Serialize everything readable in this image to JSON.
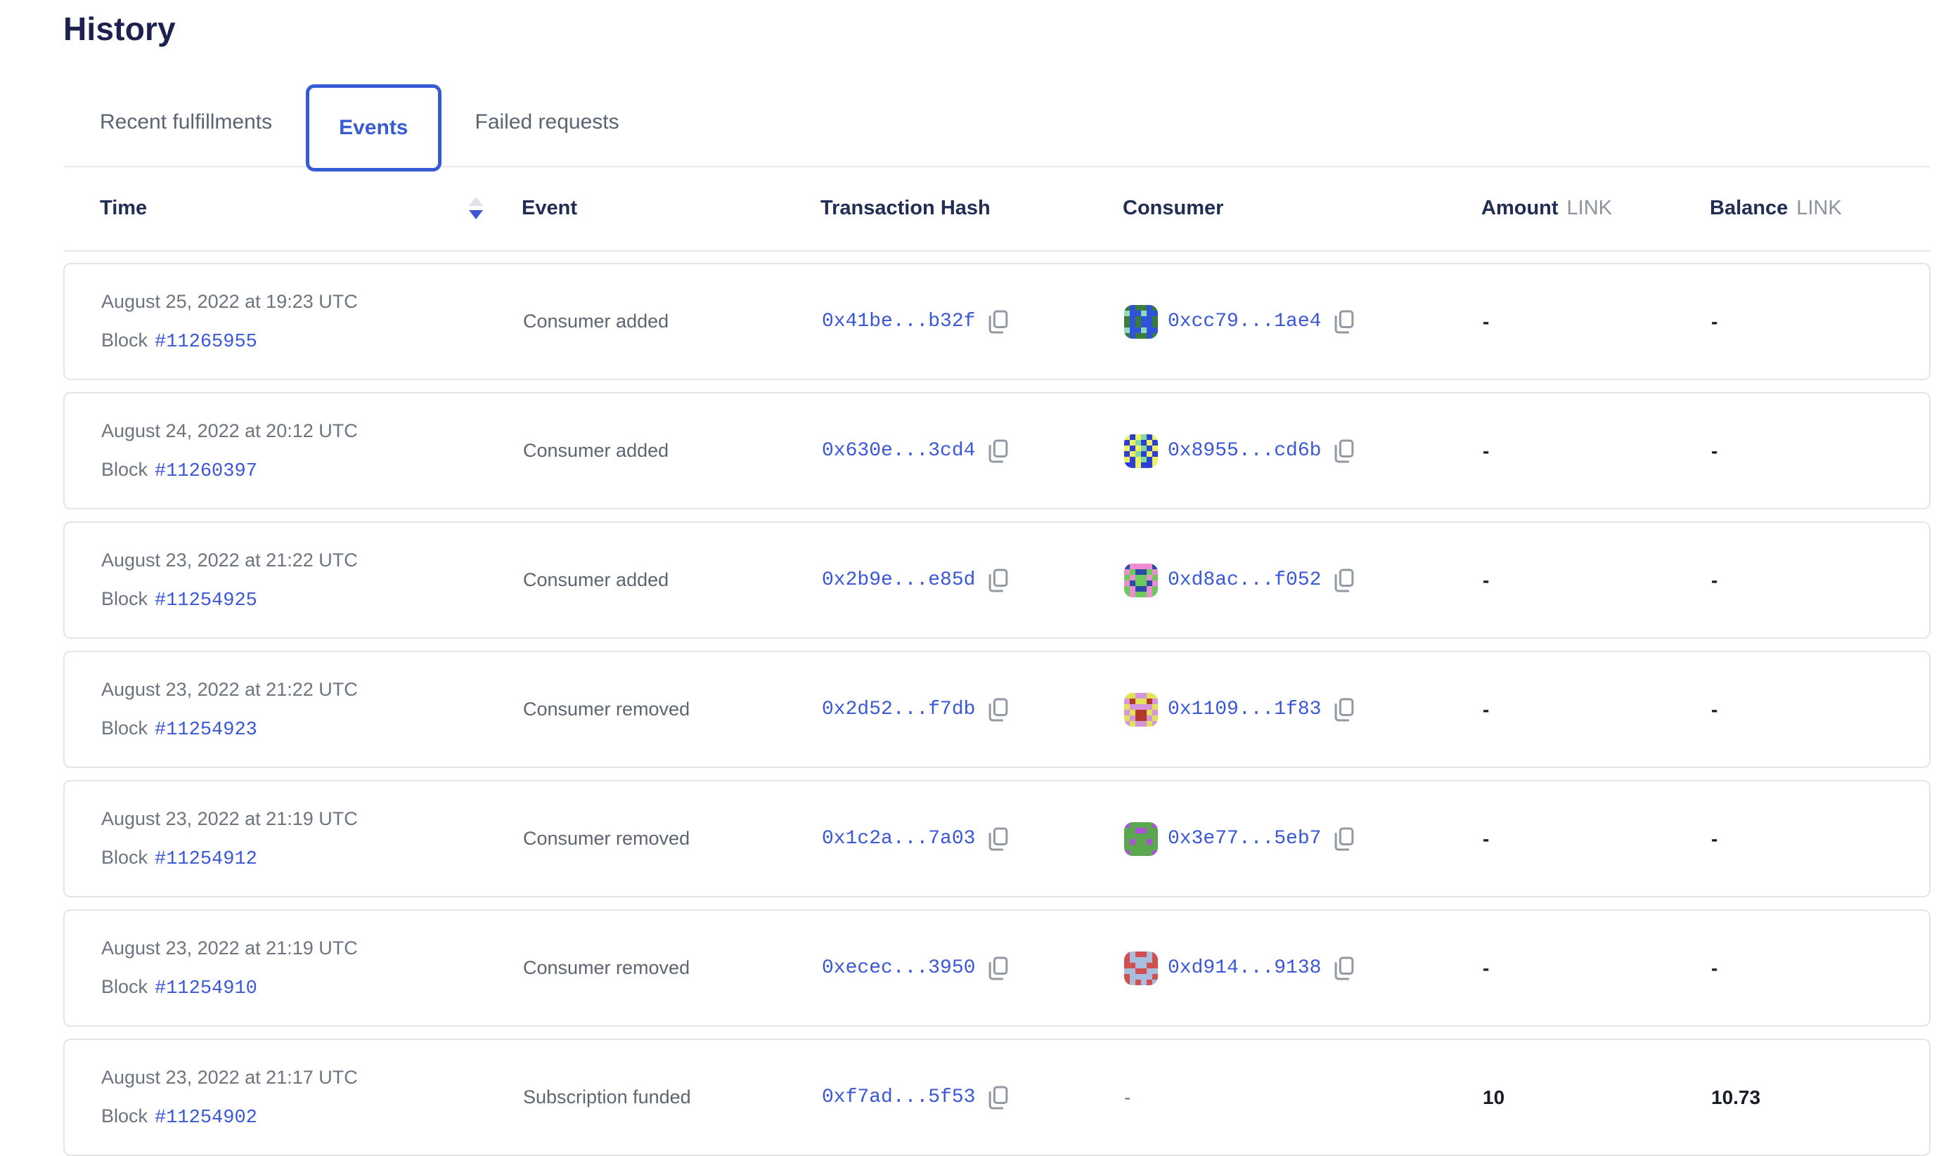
{
  "page": {
    "title": "History"
  },
  "colors": {
    "accent_blue": "#375bd2",
    "link_blue": "#3a57d7",
    "title_navy": "#1c2150",
    "header_navy": "#222d54",
    "muted_gray": "#6c7480",
    "unit_gray": "#8d939e",
    "value_dark": "#191d28",
    "card_border": "#e4e5e9",
    "sort_inactive": "#dfe3e9"
  },
  "tabs": [
    {
      "label": "Recent fulfillments",
      "active": false
    },
    {
      "label": "Events",
      "active": true
    },
    {
      "label": "Failed requests",
      "active": false
    }
  ],
  "table": {
    "block_label": "Block",
    "sort": {
      "column": "Time",
      "direction": "descending"
    },
    "header": {
      "time": "Time",
      "event": "Event",
      "tx_hash": "Transaction Hash",
      "consumer": "Consumer",
      "amount": "Amount",
      "amount_unit": "LINK",
      "balance": "Balance",
      "balance_unit": "LINK"
    },
    "rows": [
      {
        "time": "August 25, 2022 at 19:23 UTC",
        "block_number": "#11265955",
        "event": "Consumer added",
        "tx_hash": "0x41be...b32f",
        "consumer_address": "0xcc79...1ae4",
        "consumer_avatar": {
          "colors": [
            "#3a7d3a",
            "#2e52d8",
            "#8fd9bd"
          ],
          "grid": [
            "010010",
            "211211",
            "010110",
            "010110",
            "211211",
            "010010"
          ]
        },
        "amount": "-",
        "balance": "-"
      },
      {
        "time": "August 24, 2022 at 20:12 UTC",
        "block_number": "#11260397",
        "event": "Consumer added",
        "tx_hash": "0x630e...3cd4",
        "consumer_address": "0x8955...cd6b",
        "consumer_avatar": {
          "colors": [
            "#2b3fd6",
            "#eef060",
            "#7fd9a0"
          ],
          "grid": [
            "101201",
            "012010",
            "101201",
            "012010",
            "101201",
            "001001"
          ]
        },
        "amount": "-",
        "balance": "-"
      },
      {
        "time": "August 23, 2022 at 21:22 UTC",
        "block_number": "#11254925",
        "event": "Consumer added",
        "tx_hash": "0x2b9e...e85d",
        "consumer_address": "0xd8ac...f052",
        "consumer_avatar": {
          "colors": [
            "#6cc95b",
            "#ef8bce",
            "#2c4ba6"
          ],
          "grid": [
            "211112",
            "102201",
            "010010",
            "120021",
            "012210",
            "010010"
          ]
        },
        "amount": "-",
        "balance": "-"
      },
      {
        "time": "August 23, 2022 at 21:22 UTC",
        "block_number": "#11254923",
        "event": "Consumer removed",
        "tx_hash": "0x2d52...f7db",
        "consumer_address": "0x1109...1f83",
        "consumer_avatar": {
          "colors": [
            "#d795dd",
            "#e0e257",
            "#b23a28"
          ],
          "grid": [
            "110011",
            "021120",
            "100001",
            "012210",
            "102201",
            "010010"
          ]
        },
        "amount": "-",
        "balance": "-"
      },
      {
        "time": "August 23, 2022 at 21:19 UTC",
        "block_number": "#11254912",
        "event": "Consumer removed",
        "tx_hash": "0x1c2a...7a03",
        "consumer_address": "0x3e77...5eb7",
        "consumer_avatar": {
          "colors": [
            "#5aa74f",
            "#b052d8"
          ],
          "grid": [
            "100001",
            "001100",
            "000000",
            "010010",
            "000000",
            "100001"
          ]
        },
        "amount": "-",
        "balance": "-"
      },
      {
        "time": "August 23, 2022 at 21:19 UTC",
        "block_number": "#11254910",
        "event": "Consumer removed",
        "tx_hash": "0xecec...3950",
        "consumer_address": "0xd914...9138",
        "consumer_avatar": {
          "colors": [
            "#d14f4f",
            "#a9bddf"
          ],
          "grid": [
            "010010",
            "011110",
            "001100",
            "110011",
            "011110",
            "010101"
          ]
        },
        "amount": "-",
        "balance": "-"
      },
      {
        "time": "August 23, 2022 at 21:17 UTC",
        "block_number": "#11254902",
        "event": "Subscription funded",
        "tx_hash": "0xf7ad...5f53",
        "consumer_address": "-",
        "consumer_avatar": null,
        "amount": "10",
        "balance": "10.73"
      }
    ]
  }
}
